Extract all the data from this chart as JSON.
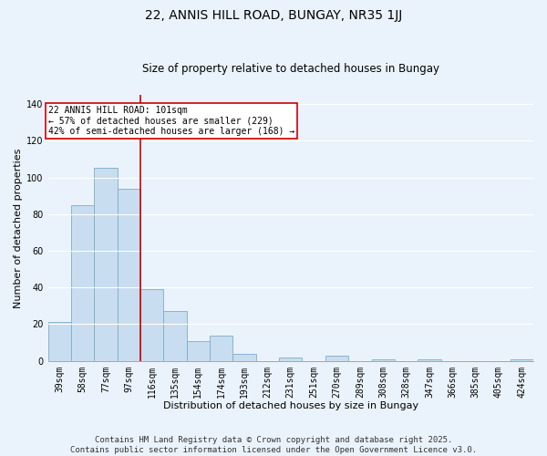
{
  "title": "22, ANNIS HILL ROAD, BUNGAY, NR35 1JJ",
  "subtitle": "Size of property relative to detached houses in Bungay",
  "xlabel": "Distribution of detached houses by size in Bungay",
  "ylabel": "Number of detached properties",
  "bar_labels": [
    "39sqm",
    "58sqm",
    "77sqm",
    "97sqm",
    "116sqm",
    "135sqm",
    "154sqm",
    "174sqm",
    "193sqm",
    "212sqm",
    "231sqm",
    "251sqm",
    "270sqm",
    "289sqm",
    "308sqm",
    "328sqm",
    "347sqm",
    "366sqm",
    "385sqm",
    "405sqm",
    "424sqm"
  ],
  "bar_values": [
    21,
    85,
    105,
    94,
    39,
    27,
    11,
    14,
    4,
    0,
    2,
    0,
    3,
    0,
    1,
    0,
    1,
    0,
    0,
    0,
    1
  ],
  "bar_color": "#c8ddef",
  "bar_edge_color": "#7aaec8",
  "vline_x": 3.5,
  "vline_color": "#cc0000",
  "ylim": [
    0,
    145
  ],
  "yticks": [
    0,
    20,
    40,
    60,
    80,
    100,
    120,
    140
  ],
  "annotation_title": "22 ANNIS HILL ROAD: 101sqm",
  "annotation_line1": "← 57% of detached houses are smaller (229)",
  "annotation_line2": "42% of semi-detached houses are larger (168) →",
  "annotation_box_color": "#ffffff",
  "annotation_box_edge": "#cc0000",
  "footer_line1": "Contains HM Land Registry data © Crown copyright and database right 2025.",
  "footer_line2": "Contains public sector information licensed under the Open Government Licence v3.0.",
  "background_color": "#eaf3fb",
  "grid_color": "#ffffff",
  "title_fontsize": 10,
  "subtitle_fontsize": 8.5,
  "axis_label_fontsize": 8,
  "tick_fontsize": 7,
  "footer_fontsize": 6.5
}
